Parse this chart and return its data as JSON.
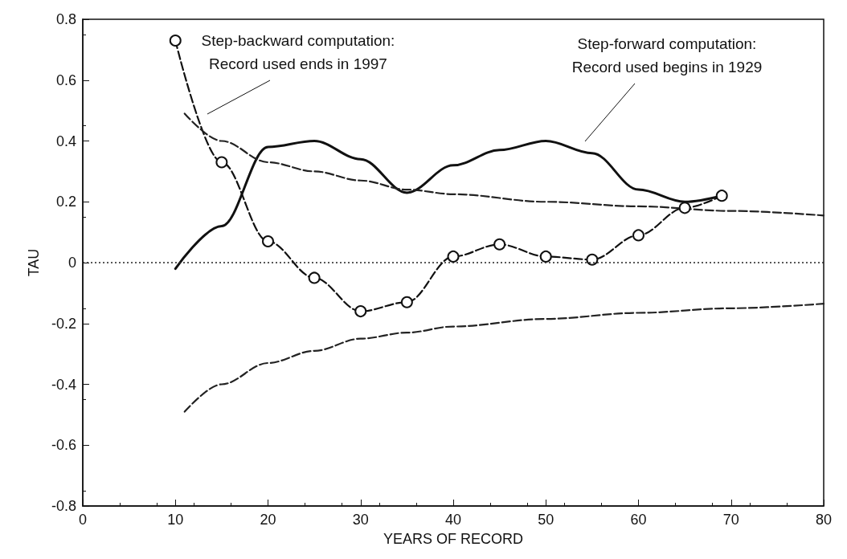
{
  "chart_data": {
    "type": "line",
    "xlabel": "YEARS OF RECORD",
    "ylabel": "TAU",
    "xlim": [
      0,
      80
    ],
    "xticks": [
      0,
      10,
      20,
      30,
      40,
      50,
      60,
      70,
      80
    ],
    "ylim": [
      -0.8,
      0.8
    ],
    "yticks": [
      -0.8,
      -0.6,
      -0.4,
      -0.2,
      0,
      0.2,
      0.4,
      0.6,
      0.8
    ],
    "grid": false,
    "series": [
      {
        "color": "#111111",
        "marker": "circle",
        "line_style": "dashed",
        "x": [
          10,
          15,
          20,
          25,
          30,
          35,
          40,
          45,
          50,
          55,
          60,
          65,
          69
        ],
        "values": [
          0.73,
          0.33,
          0.07,
          -0.05,
          -0.16,
          -0.13,
          0.02,
          0.06,
          0.02,
          0.01,
          0.09,
          0.18,
          0.22
        ]
      },
      {
        "color": "#111111",
        "marker": "none",
        "line_style": "solid",
        "x": [
          10,
          15,
          20,
          25,
          30,
          35,
          40,
          45,
          50,
          55,
          60,
          65,
          69
        ],
        "values": [
          -0.02,
          0.12,
          0.38,
          0.4,
          0.34,
          0.23,
          0.32,
          0.37,
          0.4,
          0.36,
          0.24,
          0.2,
          0.22
        ]
      },
      {
        "color": "#222222",
        "marker": "none",
        "line_style": "dashed",
        "x": [
          11,
          15,
          20,
          25,
          30,
          35,
          40,
          50,
          60,
          70,
          80
        ],
        "values": [
          0.49,
          0.4,
          0.33,
          0.3,
          0.27,
          0.24,
          0.225,
          0.2,
          0.185,
          0.17,
          0.155
        ]
      },
      {
        "color": "#222222",
        "marker": "none",
        "line_style": "dashed",
        "x": [
          11,
          15,
          20,
          25,
          30,
          35,
          40,
          50,
          60,
          70,
          80
        ],
        "values": [
          -0.49,
          -0.4,
          -0.33,
          -0.29,
          -0.25,
          -0.23,
          -0.21,
          -0.185,
          -0.165,
          -0.15,
          -0.135
        ]
      }
    ],
    "ref_lines": [
      {
        "axis": "y",
        "value": 0,
        "line_style": "dotted",
        "color": "#222222"
      }
    ],
    "annotations": [
      "Step-backward computation:\nRecord used ends in 1997",
      "Step-forward computation:\nRecord used begins in 1929"
    ]
  }
}
